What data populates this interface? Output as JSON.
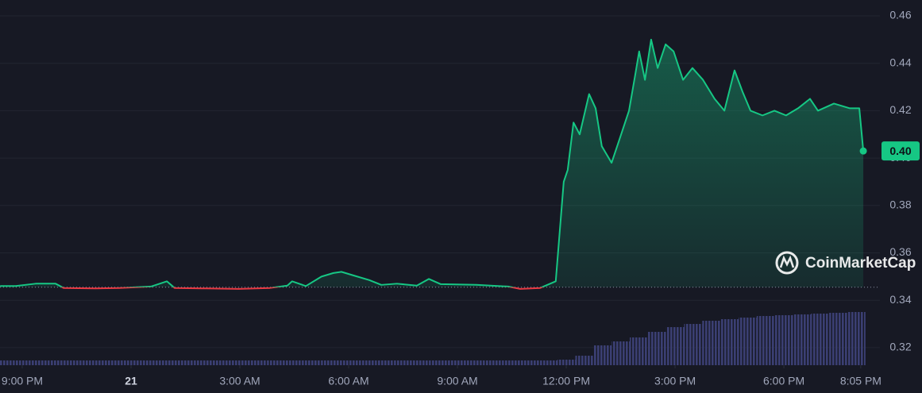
{
  "chart_data": {
    "type": "line",
    "x": [
      -0.61,
      -0.18,
      0.37,
      0.92,
      1.14,
      2.01,
      2.67,
      3.55,
      3.99,
      4.2,
      5.08,
      5.96,
      6.83,
      7.31,
      7.44,
      7.82,
      8.25,
      8.58,
      8.8,
      9.13,
      9.57,
      9.9,
      10.33,
      10.88,
      11.21,
      11.54,
      12.52,
      13.4,
      13.73,
      14.28,
      14.71,
      14.93,
      15.04,
      15.2,
      15.37,
      15.63,
      15.81,
      15.98,
      16.25,
      16.47,
      16.73,
      16.9,
      17.01,
      17.17,
      17.34,
      17.52,
      17.74,
      17.96,
      18.22,
      18.48,
      18.77,
      19.09,
      19.36,
      19.64,
      19.86,
      20.08,
      20.41,
      20.74,
      21.06,
      21.39,
      21.72,
      21.94,
      22.38,
      22.82,
      23.08,
      23.19
    ],
    "values": [
      0.346,
      0.346,
      0.347,
      0.347,
      0.3452,
      0.345,
      0.3452,
      0.3458,
      0.348,
      0.3452,
      0.345,
      0.3448,
      0.3452,
      0.3462,
      0.348,
      0.346,
      0.35,
      0.3515,
      0.352,
      0.3505,
      0.3485,
      0.3465,
      0.347,
      0.3462,
      0.349,
      0.3468,
      0.3465,
      0.3458,
      0.3448,
      0.3452,
      0.348,
      0.39,
      0.395,
      0.415,
      0.41,
      0.427,
      0.421,
      0.405,
      0.398,
      0.408,
      0.42,
      0.435,
      0.445,
      0.433,
      0.45,
      0.438,
      0.448,
      0.445,
      0.433,
      0.438,
      0.433,
      0.425,
      0.42,
      0.437,
      0.428,
      0.42,
      0.418,
      0.42,
      0.418,
      0.421,
      0.425,
      0.42,
      0.423,
      0.421,
      0.421,
      0.403
    ],
    "open": 0.3455,
    "last_label": "0.40",
    "up_color": "#16c784",
    "down_color": "#ea3943",
    "xlim": [
      -0.613,
      23.648
    ],
    "xticks": [
      {
        "value": 0,
        "label": "9:00 PM"
      },
      {
        "value": 3,
        "label": "21"
      },
      {
        "value": 6,
        "label": "3:00 AM"
      },
      {
        "value": 9,
        "label": "6:00 AM"
      },
      {
        "value": 12,
        "label": "9:00 AM"
      },
      {
        "value": 15,
        "label": "12:00 PM"
      },
      {
        "value": 18,
        "label": "3:00 PM"
      },
      {
        "value": 21,
        "label": "6:00 PM"
      },
      {
        "value": 23.12,
        "label": "8:05 PM"
      }
    ],
    "ylim": [
      0.3126,
      0.4667
    ],
    "yticks": [
      0.32,
      0.34,
      0.36,
      0.38,
      {
        "value": 0.4,
        "label": "0.40"
      },
      0.42,
      0.44,
      0.46
    ],
    "grid": true,
    "volume": {
      "color": "#3b3f73",
      "ylim": [
        0,
        100
      ],
      "x": [
        -0.5,
        0,
        0.5,
        1,
        1.5,
        2,
        2.5,
        3,
        3.5,
        4,
        4.5,
        5,
        5.5,
        6,
        6.5,
        7,
        7.5,
        8,
        8.5,
        9,
        9.5,
        10,
        10.5,
        11,
        11.5,
        12,
        12.5,
        13,
        13.5,
        14,
        14.5,
        15,
        15.5,
        16,
        16.5,
        17,
        17.5,
        18,
        18.5,
        19,
        19.5,
        20,
        20.5,
        21,
        21.5,
        22,
        22.5,
        23
      ],
      "values": [
        6,
        6,
        6,
        6,
        6,
        6,
        6,
        6,
        6,
        6,
        6,
        6,
        6,
        6,
        6,
        6,
        6,
        6,
        6,
        6,
        6,
        6,
        6,
        6,
        6,
        6,
        6,
        6,
        6,
        6,
        6,
        7,
        12,
        25,
        30,
        35,
        42,
        48,
        52,
        56,
        58,
        60,
        62,
        63,
        64,
        65,
        66,
        67
      ]
    },
    "watermark": "CoinMarketCap"
  }
}
